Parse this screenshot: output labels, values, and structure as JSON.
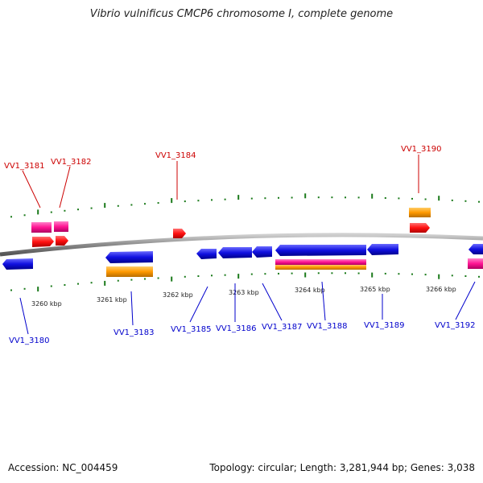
{
  "title": "Vibrio vulnificus CMCP6 chromosome I, complete genome",
  "footer": {
    "accession": "Accession: NC_004459",
    "summary": "Topology: circular; Length: 3,281,944 bp; Genes: 3,038"
  },
  "colors": {
    "backbone": "#8a8a8a",
    "gene_blue": "#1010e0",
    "gene_red": "#ff1010",
    "gene_pink": "#ff1493",
    "gene_orange": "#ff9900",
    "tick": "#1a7a1a",
    "label_top": "#cc0000",
    "label_bottom": "#0000cc"
  },
  "scale_labels": [
    "3260 kbp",
    "3261 kbp",
    "3262 kbp",
    "3263 kbp",
    "3264 kbp",
    "3265 kbp",
    "3266 kbp"
  ],
  "top_labels": [
    "VV1_3181",
    "VV1_3182",
    "VV1_3184",
    "VV1_3190"
  ],
  "bottom_labels": [
    "VV1_3180",
    "VV1_3183",
    "VV1_3185",
    "VV1_3186",
    "VV1_3187",
    "VV1_3188",
    "VV1_3189",
    "VV1_3192"
  ]
}
